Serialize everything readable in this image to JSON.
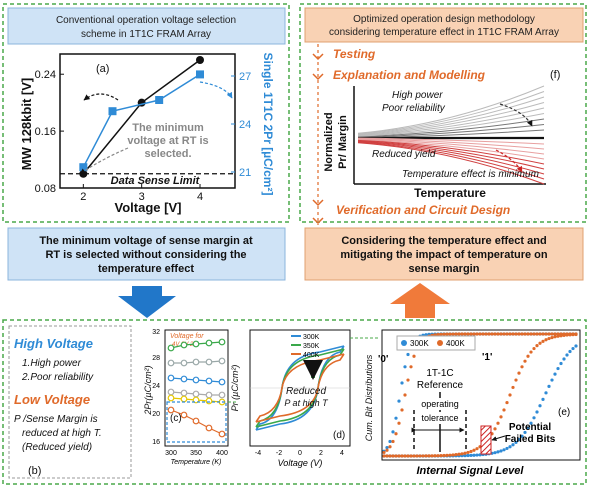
{
  "left_top": {
    "title_line1": "Conventional operation voltage selection",
    "title_line2": "scheme in 1T1C FRAM Array",
    "panel_label": "(a)",
    "y_left_label": "MW 128kbit [V]",
    "y_right_label": "Single 1T1C 2Pr [µC/cm²]",
    "x_label": "Voltage [V]",
    "annotation_line1": "The minimum",
    "annotation_line2": "voltage at RT is",
    "annotation_line3": "selected.",
    "limit_label": "Data Sense Limit",
    "color_black": "#111111",
    "color_blue": "#2f8bd6"
  },
  "chart_data": {
    "type": "line",
    "x": [
      2,
      3,
      4
    ],
    "xlabel": "Voltage [V]",
    "ylabel": "MW 128kbit [V]",
    "ylim": [
      0.08,
      0.26
    ],
    "y_right_label": "Single 1T1C 2Pr [µC/cm²]",
    "y_right_lim": [
      20,
      28
    ],
    "series": [
      {
        "axis": "left",
        "values": [
          0.1,
          0.2,
          0.26
        ],
        "x": [
          2,
          3,
          4
        ]
      },
      {
        "axis": "right",
        "values": [
          21.3,
          24.8,
          25.5,
          27.1
        ],
        "x": [
          2,
          2.5,
          3.3,
          4
        ]
      }
    ],
    "x_ticks": [
      "2",
      "3",
      "4"
    ],
    "y_left_ticks": [
      "0.08",
      "0.16",
      "0.24"
    ],
    "y_right_ticks": [
      "21",
      "24",
      "27"
    ],
    "threshold": {
      "label": "Data Sense Limit",
      "value": 0.1
    }
  },
  "left_mid": {
    "line1": "The minimum voltage of sense margin at",
    "line2": "RT is selected without considering the",
    "line3": "temperature effect"
  },
  "right_top": {
    "title_line1": "Optimized operation design methodology",
    "title_line2": "considering temperature effect in 1T1C FRAM Array",
    "step1": "Testing",
    "step2": "Explanation and Modelling",
    "step3": "Verification and Circuit Design",
    "panel_label": "(f)",
    "y_label_line1": "Normalized",
    "y_label_line2": "Pr/ Margin",
    "x_label": "Temperature",
    "high_power": "High power",
    "poor_reliability": "Poor reliability",
    "reduced_yield": "Reduced yield",
    "temp_effect": "Temperature effect is minimum"
  },
  "right_mid": {
    "line1": "Considering the temperature effect and",
    "line2": "mitigating the impact of temperature on",
    "line3": "sense margin"
  },
  "bottom_b": {
    "high_voltage": "High Voltage",
    "hv_item1": "1.High power",
    "hv_item2": "2.Poor reliability",
    "low_voltage": "Low Voltage",
    "lv_line1": "P",
    "lv_line1b": " /Sense Margin is",
    "lv_line2": "reduced at high T.",
    "lv_line3": "(Reduced yield)",
    "panel_label": "(b)"
  },
  "bottom_c": {
    "y_label": "2Pr(µC/cm²)",
    "x_label": "Temperature (K)",
    "x_ticks": [
      "300",
      "350",
      "400"
    ],
    "y_ticks": [
      "32",
      "28",
      "24",
      "20",
      "16"
    ],
    "legend_line1": "Voltage for",
    "legend_line2": "4V  3V  2V",
    "panel_label": "(c)"
  },
  "bottom_d": {
    "y_label": "Pr (µC/cm²)",
    "x_label": "Voltage (V)",
    "x_ticks": [
      "-4",
      "-2",
      "0",
      "2",
      "4"
    ],
    "y_ticks": [
      "20",
      "10",
      "0",
      "-10",
      "-20"
    ],
    "legend": [
      "300K",
      "350K",
      "400K"
    ],
    "reduced_line1": "Reduced",
    "reduced_line2": "P  at high T",
    "panel_label": "(d)"
  },
  "bottom_e": {
    "legend": [
      "300K",
      "400K"
    ],
    "label_0": "'0'",
    "label_1": "'1'",
    "ref_line1": "1T-1C",
    "ref_line2": "Reference",
    "op_line1": "operating",
    "op_line2": "tolerance",
    "failed_line1": "Potential",
    "failed_line2": "Failed Bits",
    "y_label": "Cum. Bit Distributions",
    "x_label": "Internal Signal Level",
    "panel_label": "(e)"
  }
}
